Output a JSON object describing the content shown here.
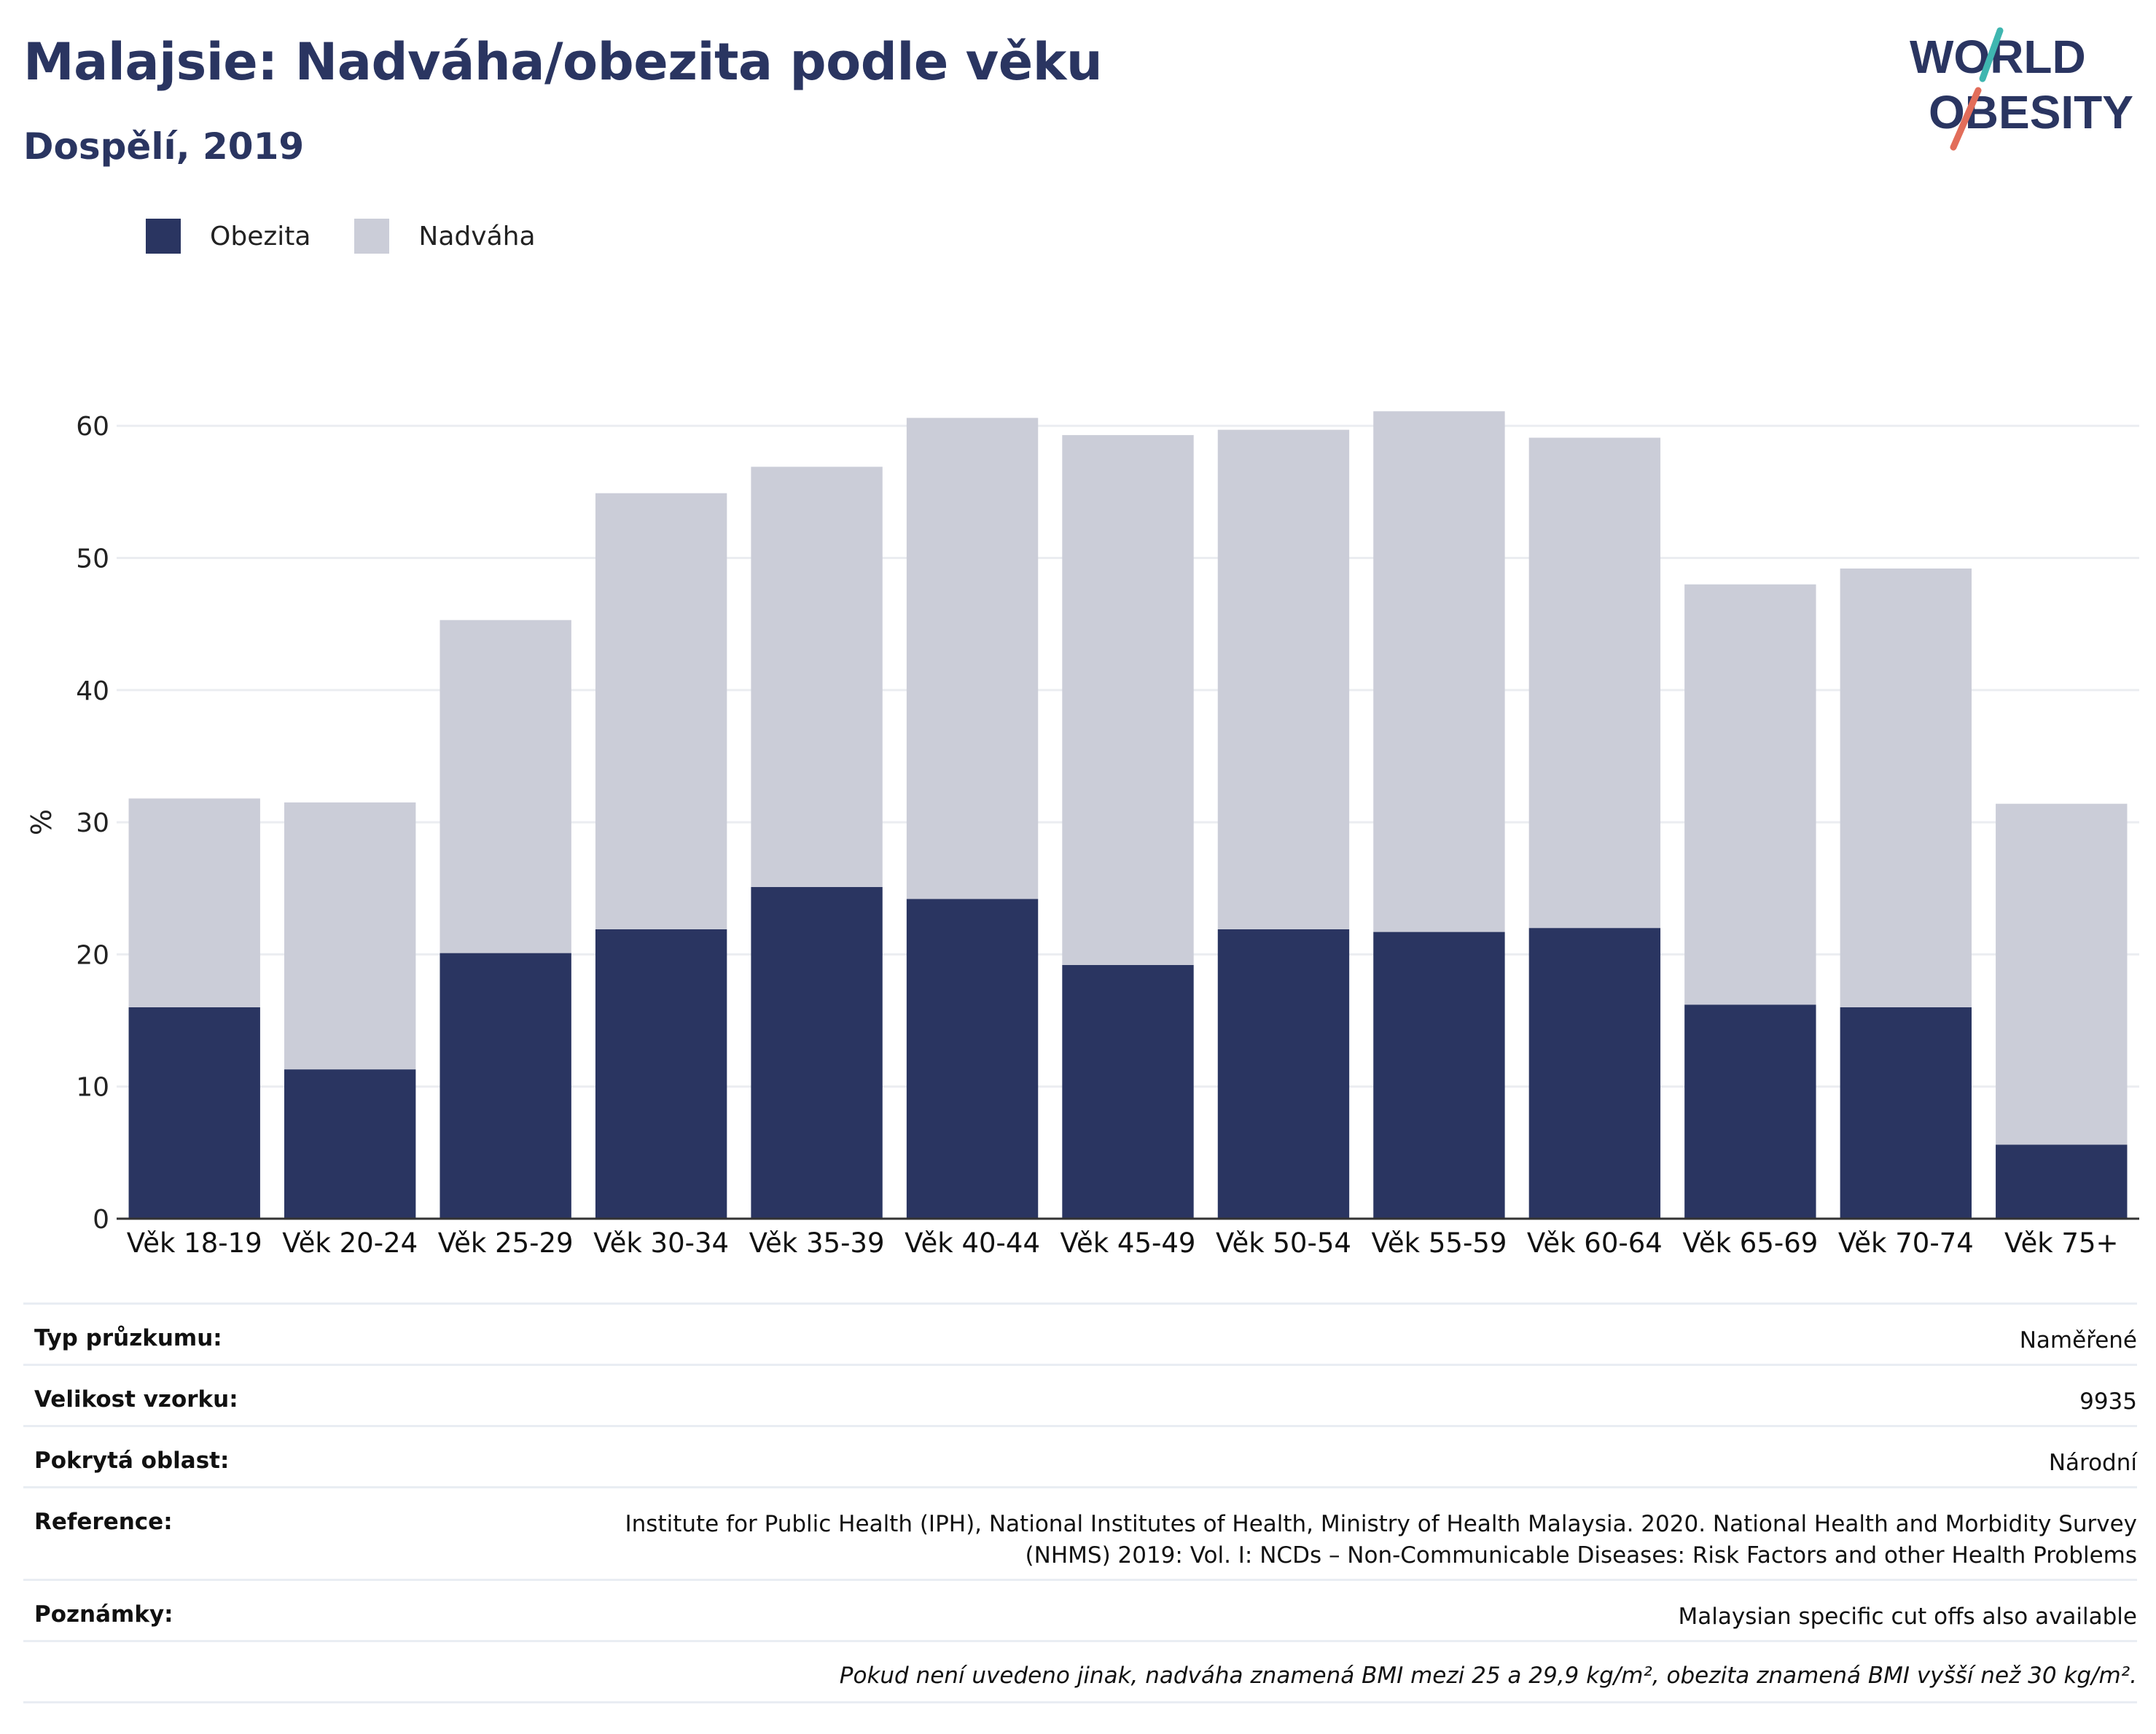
{
  "header": {
    "title": "Malajsie: Nadváha/obezita podle věku",
    "subtitle": "Dospělí, 2019"
  },
  "logo": {
    "line1": "WORLD",
    "line2": "OBESITY"
  },
  "colors": {
    "obesity": "#2a3561",
    "overweight": "#cbcdd8",
    "title": "#2a3561",
    "logo_teal": "#3fb6b0",
    "logo_coral": "#e26d5a"
  },
  "legend": [
    {
      "label": "Obezita",
      "color": "#2a3561"
    },
    {
      "label": "Nadváha",
      "color": "#cbcdd8"
    }
  ],
  "chart_data": {
    "type": "bar",
    "stacked": true,
    "categories": [
      "Věk 18-19",
      "Věk 20-24",
      "Věk 25-29",
      "Věk 30-34",
      "Věk 35-39",
      "Věk 40-44",
      "Věk 45-49",
      "Věk 50-54",
      "Věk 55-59",
      "Věk 60-64",
      "Věk 65-69",
      "Věk 70-74",
      "Věk 75+"
    ],
    "series": [
      {
        "name": "Obezita",
        "values": [
          16.0,
          11.3,
          20.1,
          21.9,
          25.1,
          24.2,
          19.2,
          21.9,
          21.7,
          22.0,
          16.2,
          16.0,
          5.6
        ]
      },
      {
        "name": "Nadváha",
        "values": [
          15.8,
          20.2,
          25.2,
          33.0,
          31.8,
          36.4,
          40.1,
          37.8,
          39.4,
          37.1,
          31.8,
          33.2,
          25.8
        ]
      }
    ],
    "ylabel": "%",
    "ylim": [
      0,
      60
    ],
    "yticks": [
      0,
      10,
      20,
      30,
      40,
      50,
      60
    ],
    "grid": true,
    "legend_position": "top-left"
  },
  "meta": [
    {
      "label": "Typ průzkumu:",
      "value": "Naměřené"
    },
    {
      "label": "Velikost vzorku:",
      "value": "9935"
    },
    {
      "label": "Pokrytá oblast:",
      "value": "Národní"
    },
    {
      "label": "Reference:",
      "value": "Institute for Public Health (IPH), National Institutes of Health, Ministry of Health Malaysia. 2020. National Health and Morbidity Survey (NHMS) 2019: Vol. I: NCDs – Non-Communicable Diseases: Risk Factors and other Health Problems"
    },
    {
      "label": "Poznámky:",
      "value": "Malaysian specific cut offs also available"
    }
  ],
  "footnote": "Pokud není uvedeno jinak, nadváha znamená BMI mezi 25 a 29,9 kg/m², obezita znamená BMI vyšší než 30 kg/m²."
}
